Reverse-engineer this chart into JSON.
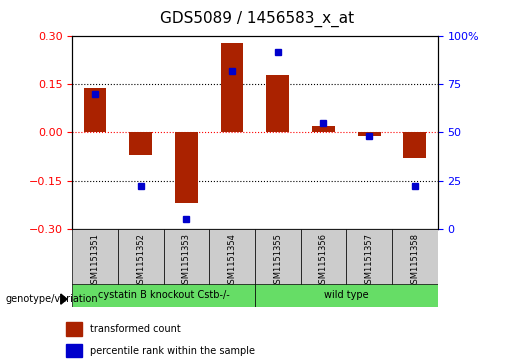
{
  "title": "GDS5089 / 1456583_x_at",
  "samples": [
    "GSM1151351",
    "GSM1151352",
    "GSM1151353",
    "GSM1151354",
    "GSM1151355",
    "GSM1151356",
    "GSM1151357",
    "GSM1151358"
  ],
  "transformed_count": [
    0.14,
    -0.07,
    -0.22,
    0.28,
    0.18,
    0.02,
    -0.01,
    -0.08
  ],
  "percentile_rank": [
    70,
    22,
    5,
    82,
    92,
    55,
    48,
    22
  ],
  "bar_color": "#AA2200",
  "dot_color": "#0000CC",
  "ylim_left": [
    -0.3,
    0.3
  ],
  "ylim_right": [
    0,
    100
  ],
  "yticks_left": [
    -0.3,
    -0.15,
    0.0,
    0.15,
    0.3
  ],
  "yticks_right": [
    0,
    25,
    50,
    75,
    100
  ],
  "hlines": [
    -0.15,
    0.0,
    0.15
  ],
  "hline_colors": [
    "black",
    "red",
    "black"
  ],
  "hline_styles": [
    "dotted",
    "dotted",
    "dotted"
  ],
  "group1_label": "cystatin B knockout Cstb-/-",
  "group2_label": "wild type",
  "group1_indices": [
    0,
    1,
    2,
    3
  ],
  "group2_indices": [
    4,
    5,
    6,
    7
  ],
  "group_color": "#66DD66",
  "genotype_label": "genotype/variation",
  "legend_bar_label": "transformed count",
  "legend_dot_label": "percentile rank within the sample",
  "bar_width": 0.5,
  "title_fontsize": 11
}
